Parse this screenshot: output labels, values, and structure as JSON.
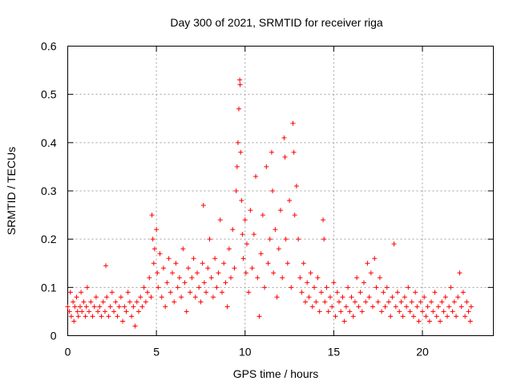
{
  "chart_data": {
    "type": "scatter",
    "title": "Day 300 of 2021, SRMTID for receiver riga",
    "xlabel": "GPS time / hours",
    "ylabel": "SRMTID / TECUs",
    "xlim": [
      0,
      24
    ],
    "ylim": [
      0,
      0.6
    ],
    "xticks": [
      0,
      5,
      10,
      15,
      20
    ],
    "xtick_labels": [
      "0",
      "5",
      "10",
      "15",
      "20"
    ],
    "yticks": [
      0,
      0.1,
      0.2,
      0.3,
      0.4,
      0.5,
      0.6
    ],
    "ytick_labels": [
      "0",
      "0.1",
      "0.2",
      "0.3",
      "0.4",
      "0.5",
      "0.6"
    ],
    "grid": true,
    "marker": "+",
    "series": [
      {
        "name": "SRMTID",
        "color": "#ff0000",
        "points": [
          [
            0.0,
            0.06
          ],
          [
            0.1,
            0.05
          ],
          [
            0.15,
            0.09
          ],
          [
            0.2,
            0.04
          ],
          [
            0.3,
            0.07
          ],
          [
            0.35,
            0.03
          ],
          [
            0.4,
            0.06
          ],
          [
            0.5,
            0.08
          ],
          [
            0.55,
            0.05
          ],
          [
            0.6,
            0.04
          ],
          [
            0.7,
            0.06
          ],
          [
            0.75,
            0.09
          ],
          [
            0.8,
            0.05
          ],
          [
            0.9,
            0.07
          ],
          [
            1.0,
            0.04
          ],
          [
            1.05,
            0.06
          ],
          [
            1.1,
            0.1
          ],
          [
            1.2,
            0.05
          ],
          [
            1.3,
            0.07
          ],
          [
            1.4,
            0.04
          ],
          [
            1.5,
            0.06
          ],
          [
            1.6,
            0.08
          ],
          [
            1.7,
            0.05
          ],
          [
            1.8,
            0.06
          ],
          [
            1.9,
            0.04
          ],
          [
            2.0,
            0.07
          ],
          [
            2.1,
            0.05
          ],
          [
            2.15,
            0.145
          ],
          [
            2.2,
            0.08
          ],
          [
            2.3,
            0.04
          ],
          [
            2.4,
            0.06
          ],
          [
            2.5,
            0.09
          ],
          [
            2.6,
            0.05
          ],
          [
            2.7,
            0.07
          ],
          [
            2.8,
            0.04
          ],
          [
            2.9,
            0.06
          ],
          [
            3.0,
            0.08
          ],
          [
            3.1,
            0.03
          ],
          [
            3.2,
            0.06
          ],
          [
            3.3,
            0.05
          ],
          [
            3.4,
            0.09
          ],
          [
            3.5,
            0.07
          ],
          [
            3.6,
            0.04
          ],
          [
            3.7,
            0.06
          ],
          [
            3.8,
            0.02
          ],
          [
            3.9,
            0.07
          ],
          [
            4.0,
            0.05
          ],
          [
            4.1,
            0.08
          ],
          [
            4.2,
            0.06
          ],
          [
            4.3,
            0.1
          ],
          [
            4.4,
            0.07
          ],
          [
            4.5,
            0.09
          ],
          [
            4.6,
            0.12
          ],
          [
            4.7,
            0.08
          ],
          [
            4.75,
            0.25
          ],
          [
            4.8,
            0.2
          ],
          [
            4.85,
            0.15
          ],
          [
            4.9,
            0.18
          ],
          [
            5.0,
            0.22
          ],
          [
            5.05,
            0.13
          ],
          [
            5.1,
            0.1
          ],
          [
            5.2,
            0.17
          ],
          [
            5.3,
            0.08
          ],
          [
            5.4,
            0.14
          ],
          [
            5.5,
            0.06
          ],
          [
            5.6,
            0.11
          ],
          [
            5.7,
            0.16
          ],
          [
            5.8,
            0.09
          ],
          [
            5.9,
            0.13
          ],
          [
            6.0,
            0.07
          ],
          [
            6.1,
            0.15
          ],
          [
            6.2,
            0.1
          ],
          [
            6.3,
            0.12
          ],
          [
            6.4,
            0.08
          ],
          [
            6.5,
            0.18
          ],
          [
            6.6,
            0.11
          ],
          [
            6.7,
            0.05
          ],
          [
            6.8,
            0.14
          ],
          [
            6.9,
            0.09
          ],
          [
            7.0,
            0.12
          ],
          [
            7.1,
            0.16
          ],
          [
            7.2,
            0.08
          ],
          [
            7.3,
            0.13
          ],
          [
            7.4,
            0.1
          ],
          [
            7.5,
            0.07
          ],
          [
            7.6,
            0.15
          ],
          [
            7.65,
            0.27
          ],
          [
            7.7,
            0.11
          ],
          [
            7.8,
            0.09
          ],
          [
            7.9,
            0.14
          ],
          [
            8.0,
            0.2
          ],
          [
            8.1,
            0.12
          ],
          [
            8.2,
            0.08
          ],
          [
            8.3,
            0.16
          ],
          [
            8.4,
            0.1
          ],
          [
            8.5,
            0.13
          ],
          [
            8.6,
            0.24
          ],
          [
            8.7,
            0.09
          ],
          [
            8.8,
            0.15
          ],
          [
            8.9,
            0.11
          ],
          [
            9.0,
            0.06
          ],
          [
            9.1,
            0.18
          ],
          [
            9.2,
            0.12
          ],
          [
            9.3,
            0.22
          ],
          [
            9.4,
            0.14
          ],
          [
            9.5,
            0.3
          ],
          [
            9.55,
            0.35
          ],
          [
            9.6,
            0.4
          ],
          [
            9.65,
            0.47
          ],
          [
            9.7,
            0.53
          ],
          [
            9.72,
            0.52
          ],
          [
            9.75,
            0.38
          ],
          [
            9.8,
            0.28
          ],
          [
            9.85,
            0.21
          ],
          [
            9.9,
            0.16
          ],
          [
            10.0,
            0.24
          ],
          [
            10.05,
            0.13
          ],
          [
            10.1,
            0.19
          ],
          [
            10.2,
            0.09
          ],
          [
            10.3,
            0.26
          ],
          [
            10.4,
            0.14
          ],
          [
            10.5,
            0.21
          ],
          [
            10.6,
            0.33
          ],
          [
            10.7,
            0.12
          ],
          [
            10.8,
            0.04
          ],
          [
            10.9,
            0.17
          ],
          [
            11.0,
            0.25
          ],
          [
            11.1,
            0.1
          ],
          [
            11.2,
            0.35
          ],
          [
            11.3,
            0.15
          ],
          [
            11.4,
            0.2
          ],
          [
            11.5,
            0.38
          ],
          [
            11.55,
            0.3
          ],
          [
            11.6,
            0.13
          ],
          [
            11.7,
            0.22
          ],
          [
            11.8,
            0.08
          ],
          [
            11.9,
            0.18
          ],
          [
            12.0,
            0.26
          ],
          [
            12.1,
            0.12
          ],
          [
            12.2,
            0.41
          ],
          [
            12.25,
            0.37
          ],
          [
            12.3,
            0.2
          ],
          [
            12.4,
            0.15
          ],
          [
            12.5,
            0.28
          ],
          [
            12.6,
            0.1
          ],
          [
            12.7,
            0.44
          ],
          [
            12.75,
            0.38
          ],
          [
            12.8,
            0.25
          ],
          [
            12.9,
            0.31
          ],
          [
            13.0,
            0.2
          ],
          [
            13.1,
            0.12
          ],
          [
            13.2,
            0.09
          ],
          [
            13.3,
            0.15
          ],
          [
            13.4,
            0.07
          ],
          [
            13.5,
            0.11
          ],
          [
            13.6,
            0.08
          ],
          [
            13.7,
            0.13
          ],
          [
            13.8,
            0.06
          ],
          [
            13.9,
            0.1
          ],
          [
            14.0,
            0.07
          ],
          [
            14.1,
            0.12
          ],
          [
            14.2,
            0.05
          ],
          [
            14.3,
            0.09
          ],
          [
            14.4,
            0.24
          ],
          [
            14.45,
            0.2
          ],
          [
            14.5,
            0.07
          ],
          [
            14.6,
            0.1
          ],
          [
            14.7,
            0.05
          ],
          [
            14.8,
            0.08
          ],
          [
            14.9,
            0.06
          ],
          [
            15.0,
            0.11
          ],
          [
            15.1,
            0.04
          ],
          [
            15.2,
            0.09
          ],
          [
            15.3,
            0.07
          ],
          [
            15.4,
            0.05
          ],
          [
            15.5,
            0.08
          ],
          [
            15.6,
            0.03
          ],
          [
            15.7,
            0.06
          ],
          [
            15.8,
            0.1
          ],
          [
            15.9,
            0.05
          ],
          [
            16.0,
            0.08
          ],
          [
            16.1,
            0.04
          ],
          [
            16.2,
            0.07
          ],
          [
            16.3,
            0.12
          ],
          [
            16.4,
            0.06
          ],
          [
            16.5,
            0.09
          ],
          [
            16.6,
            0.05
          ],
          [
            16.7,
            0.11
          ],
          [
            16.8,
            0.07
          ],
          [
            16.9,
            0.15
          ],
          [
            17.0,
            0.08
          ],
          [
            17.1,
            0.13
          ],
          [
            17.2,
            0.06
          ],
          [
            17.3,
            0.16
          ],
          [
            17.4,
            0.1
          ],
          [
            17.5,
            0.07
          ],
          [
            17.6,
            0.12
          ],
          [
            17.7,
            0.05
          ],
          [
            17.8,
            0.09
          ],
          [
            17.9,
            0.06
          ],
          [
            18.0,
            0.1
          ],
          [
            18.1,
            0.07
          ],
          [
            18.2,
            0.04
          ],
          [
            18.3,
            0.08
          ],
          [
            18.4,
            0.19
          ],
          [
            18.5,
            0.06
          ],
          [
            18.6,
            0.09
          ],
          [
            18.7,
            0.05
          ],
          [
            18.8,
            0.07
          ],
          [
            18.9,
            0.04
          ],
          [
            19.0,
            0.08
          ],
          [
            19.1,
            0.06
          ],
          [
            19.2,
            0.1
          ],
          [
            19.3,
            0.05
          ],
          [
            19.4,
            0.07
          ],
          [
            19.5,
            0.04
          ],
          [
            19.6,
            0.09
          ],
          [
            19.7,
            0.06
          ],
          [
            19.8,
            0.03
          ],
          [
            19.9,
            0.07
          ],
          [
            20.0,
            0.05
          ],
          [
            20.1,
            0.08
          ],
          [
            20.2,
            0.04
          ],
          [
            20.3,
            0.06
          ],
          [
            20.4,
            0.03
          ],
          [
            20.5,
            0.07
          ],
          [
            20.6,
            0.05
          ],
          [
            20.7,
            0.09
          ],
          [
            20.8,
            0.04
          ],
          [
            20.9,
            0.06
          ],
          [
            21.0,
            0.03
          ],
          [
            21.1,
            0.07
          ],
          [
            21.2,
            0.05
          ],
          [
            21.3,
            0.08
          ],
          [
            21.4,
            0.04
          ],
          [
            21.5,
            0.06
          ],
          [
            21.6,
            0.1
          ],
          [
            21.7,
            0.05
          ],
          [
            21.8,
            0.07
          ],
          [
            21.9,
            0.04
          ],
          [
            22.0,
            0.08
          ],
          [
            22.1,
            0.13
          ],
          [
            22.2,
            0.06
          ],
          [
            22.3,
            0.09
          ],
          [
            22.4,
            0.04
          ],
          [
            22.5,
            0.07
          ],
          [
            22.6,
            0.05
          ],
          [
            22.7,
            0.03
          ],
          [
            22.75,
            0.06
          ]
        ]
      }
    ]
  }
}
